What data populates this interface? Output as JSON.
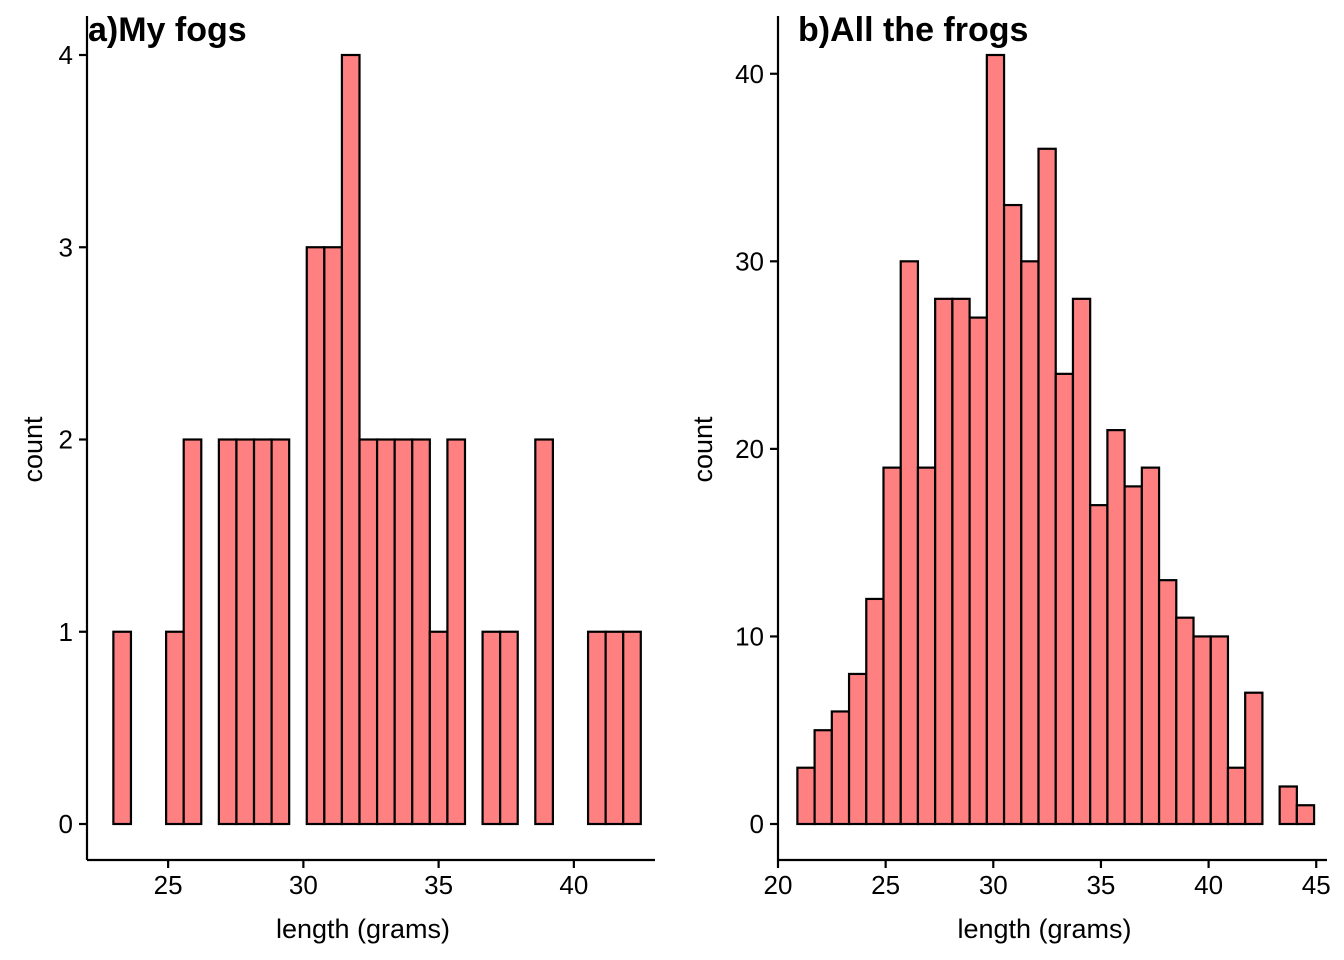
{
  "colors": {
    "bar_fill": "#f8766d",
    "bar_fill_display": "#ff8080",
    "bar_stroke": "#000000",
    "axis": "#000000"
  },
  "chart_data": [
    {
      "type": "bar",
      "chart_kind": "histogram",
      "title": "a)My fogs",
      "xlabel": "length (grams)",
      "ylabel": "count",
      "xlim": [
        22.0,
        43.0
      ],
      "ylim": [
        0,
        4
      ],
      "xticks": [
        25,
        30,
        35,
        40
      ],
      "xtick_labels": [
        "25",
        "30",
        "35",
        "40"
      ],
      "yticks": [
        0,
        1,
        2,
        3,
        4
      ],
      "ytick_labels": [
        "0",
        "1",
        "2",
        "3",
        "4"
      ],
      "grid": false,
      "legend": "none",
      "bin_width": 0.65,
      "bins": [
        {
          "x": 23.3,
          "count": 1
        },
        {
          "x": 23.95,
          "count": 0
        },
        {
          "x": 24.6,
          "count": 0
        },
        {
          "x": 25.25,
          "count": 1
        },
        {
          "x": 25.9,
          "count": 2
        },
        {
          "x": 26.55,
          "count": 0
        },
        {
          "x": 27.2,
          "count": 2
        },
        {
          "x": 27.85,
          "count": 2
        },
        {
          "x": 28.5,
          "count": 2
        },
        {
          "x": 29.15,
          "count": 2
        },
        {
          "x": 29.8,
          "count": 0
        },
        {
          "x": 30.45,
          "count": 3
        },
        {
          "x": 31.1,
          "count": 3
        },
        {
          "x": 31.75,
          "count": 4
        },
        {
          "x": 32.4,
          "count": 2
        },
        {
          "x": 33.05,
          "count": 2
        },
        {
          "x": 33.7,
          "count": 2
        },
        {
          "x": 34.35,
          "count": 2
        },
        {
          "x": 35.0,
          "count": 1
        },
        {
          "x": 35.65,
          "count": 2
        },
        {
          "x": 36.3,
          "count": 0
        },
        {
          "x": 36.95,
          "count": 1
        },
        {
          "x": 37.6,
          "count": 1
        },
        {
          "x": 38.25,
          "count": 0
        },
        {
          "x": 38.9,
          "count": 2
        },
        {
          "x": 39.55,
          "count": 0
        },
        {
          "x": 40.2,
          "count": 0
        },
        {
          "x": 40.85,
          "count": 1
        },
        {
          "x": 41.5,
          "count": 1
        },
        {
          "x": 42.15,
          "count": 1
        }
      ]
    },
    {
      "type": "bar",
      "chart_kind": "histogram",
      "title": "b)All the frogs",
      "xlabel": "length (grams)",
      "ylabel": "count",
      "xlim": [
        20.0,
        45.5
      ],
      "ylim": [
        0,
        41
      ],
      "xticks": [
        20,
        25,
        30,
        35,
        40,
        45
      ],
      "xtick_labels": [
        "20",
        "25",
        "30",
        "35",
        "40",
        "45"
      ],
      "yticks": [
        0,
        10,
        20,
        30,
        40
      ],
      "ytick_labels": [
        "0",
        "10",
        "20",
        "30",
        "40"
      ],
      "grid": false,
      "legend": "none",
      "bin_width": 0.8,
      "bins": [
        {
          "x": 21.3,
          "count": 3
        },
        {
          "x": 22.1,
          "count": 5
        },
        {
          "x": 22.9,
          "count": 6
        },
        {
          "x": 23.7,
          "count": 8
        },
        {
          "x": 24.5,
          "count": 12
        },
        {
          "x": 25.3,
          "count": 19
        },
        {
          "x": 26.1,
          "count": 30
        },
        {
          "x": 26.9,
          "count": 19
        },
        {
          "x": 27.7,
          "count": 28
        },
        {
          "x": 28.5,
          "count": 28
        },
        {
          "x": 29.3,
          "count": 27
        },
        {
          "x": 30.1,
          "count": 41
        },
        {
          "x": 30.9,
          "count": 33
        },
        {
          "x": 31.7,
          "count": 30
        },
        {
          "x": 32.5,
          "count": 36
        },
        {
          "x": 33.3,
          "count": 24
        },
        {
          "x": 34.1,
          "count": 28
        },
        {
          "x": 34.9,
          "count": 17
        },
        {
          "x": 35.7,
          "count": 21
        },
        {
          "x": 36.5,
          "count": 18
        },
        {
          "x": 37.3,
          "count": 19
        },
        {
          "x": 38.1,
          "count": 13
        },
        {
          "x": 38.9,
          "count": 11
        },
        {
          "x": 39.7,
          "count": 10
        },
        {
          "x": 40.5,
          "count": 10
        },
        {
          "x": 41.3,
          "count": 3
        },
        {
          "x": 42.1,
          "count": 7
        },
        {
          "x": 42.9,
          "count": 0
        },
        {
          "x": 43.7,
          "count": 2
        },
        {
          "x": 44.5,
          "count": 1
        }
      ]
    }
  ]
}
